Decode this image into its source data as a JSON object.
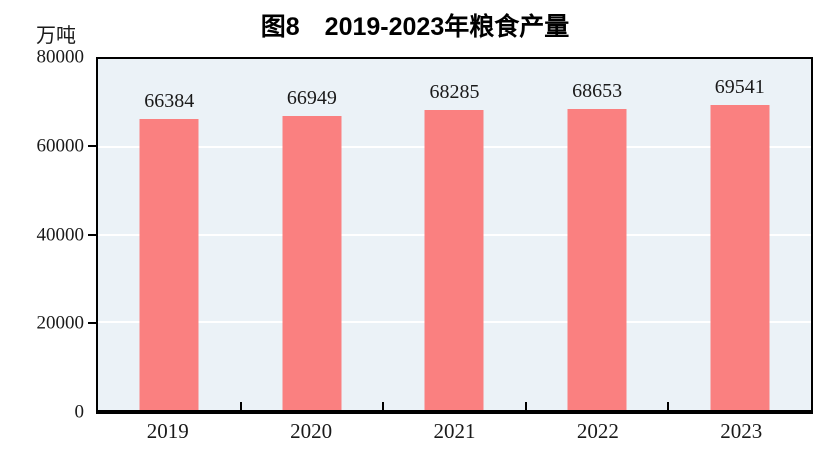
{
  "figure": {
    "title": "图8　2019-2023年粮食产量",
    "unit_label": "万吨"
  },
  "chart_data": {
    "type": "bar",
    "title": "图8　2019-2023年粮食产量",
    "xlabel": "",
    "ylabel": "万吨",
    "categories": [
      "2019",
      "2020",
      "2021",
      "2022",
      "2023"
    ],
    "values": [
      66384,
      66949,
      68285,
      68653,
      69541
    ],
    "data_labels": [
      "66384",
      "66949",
      "68285",
      "68653",
      "69541"
    ],
    "ylim": [
      0,
      80000
    ],
    "yticks": [
      0,
      20000,
      40000,
      60000,
      80000
    ],
    "grid": "horizontal",
    "legend_position": "none",
    "colors": {
      "bar_fill": "#FA8080",
      "plot_background": "#EBF2F7",
      "gridline": "#FFFFFF",
      "axis_line": "#000000",
      "text": "#1A1A1A"
    }
  }
}
